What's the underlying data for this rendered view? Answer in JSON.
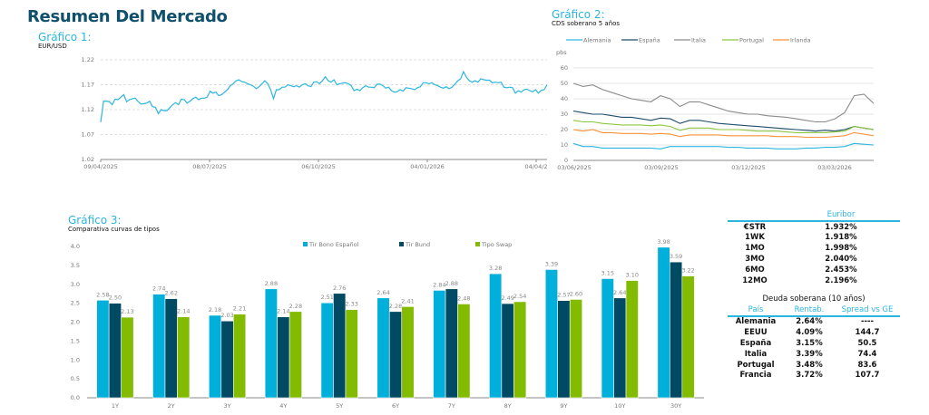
{
  "page": {
    "title": "Resumen Del Mercado"
  },
  "chart1": {
    "label": "Gráfico 1:",
    "subtitle": "EUR/USD"
  },
  "chart2": {
    "label": "Gráfico 2:",
    "subtitle": "CDS soberano 5 años",
    "unit": "pbs"
  },
  "chart3": {
    "label": "Gráfico 3:",
    "subtitle": "Comparativa curvas de tipos"
  },
  "colors": {
    "accent": "#2bb6df",
    "title": "#10506b",
    "tir_bono": "#00b0db",
    "tir_bund": "#004a63",
    "tipo_swap": "#82bb00",
    "alemania": "#2bb6df",
    "espana": "#1f4e6b",
    "italia": "#8a8a8a",
    "portugal": "#8cc63f",
    "irlanda": "#f7923a"
  },
  "chart_data": [
    {
      "type": "line",
      "title": "EUR/USD",
      "x_ticks": [
        "09/04/2025",
        "08/07/2025",
        "06/10/2025",
        "04/01/2026",
        "04/04/2"
      ],
      "y_ticks": [
        "1.02",
        "1.07",
        "1.12",
        "1.17",
        "1.22"
      ],
      "ylim": [
        1.02,
        1.22
      ],
      "grid": true,
      "series": [
        {
          "name": "EUR/USD",
          "values": [
            1.095,
            1.137,
            1.137,
            1.136,
            1.13,
            1.141,
            1.14,
            1.145,
            1.15,
            1.136,
            1.14,
            1.142,
            1.143,
            1.136,
            1.131,
            1.132,
            1.133,
            1.137,
            1.126,
            1.125,
            1.112,
            1.12,
            1.118,
            1.118,
            1.124,
            1.13,
            1.134,
            1.13,
            1.141,
            1.14,
            1.133,
            1.137,
            1.142,
            1.145,
            1.14,
            1.143,
            1.143,
            1.145,
            1.157,
            1.153,
            1.155,
            1.148,
            1.15,
            1.155,
            1.16,
            1.168,
            1.172,
            1.178,
            1.18,
            1.176,
            1.175,
            1.172,
            1.17,
            1.167,
            1.162,
            1.166,
            1.172,
            1.178,
            1.172,
            1.16,
            1.142,
            1.16,
            1.16,
            1.165,
            1.165,
            1.17,
            1.168,
            1.166,
            1.168,
            1.165,
            1.17,
            1.172,
            1.168,
            1.166,
            1.175,
            1.176,
            1.172,
            1.178,
            1.186,
            1.178,
            1.175,
            1.18,
            1.17,
            1.172,
            1.173,
            1.174,
            1.172,
            1.168,
            1.158,
            1.161,
            1.158,
            1.164,
            1.168,
            1.165,
            1.165,
            1.164,
            1.171,
            1.171,
            1.168,
            1.163,
            1.165,
            1.158,
            1.155,
            1.156,
            1.16,
            1.157,
            1.164,
            1.163,
            1.162,
            1.16,
            1.164,
            1.166,
            1.174,
            1.174,
            1.172,
            1.174,
            1.17,
            1.168,
            1.165,
            1.163,
            1.166,
            1.162,
            1.165,
            1.171,
            1.178,
            1.182,
            1.196,
            1.185,
            1.178,
            1.175,
            1.178,
            1.175,
            1.182,
            1.18,
            1.179,
            1.179,
            1.174,
            1.175,
            1.174,
            1.175,
            1.165,
            1.164,
            1.165,
            1.164,
            1.153,
            1.158,
            1.155,
            1.16,
            1.161,
            1.158,
            1.156,
            1.16,
            1.153,
            1.159,
            1.16,
            1.17
          ]
        }
      ]
    },
    {
      "type": "line",
      "title": "CDS soberano 5 años",
      "ylabel": "pbs",
      "x_ticks": [
        "03/06/2025",
        "03/09/2025",
        "03/12/2025",
        "03/03/2026"
      ],
      "y_ticks": [
        "0",
        "10",
        "20",
        "30",
        "40",
        "50",
        "60"
      ],
      "ylim": [
        0,
        60
      ],
      "grid": true,
      "legend": "top",
      "series": [
        {
          "name": "Alemania",
          "values": [
            11,
            9,
            9,
            8,
            8,
            8,
            8,
            8,
            8,
            7.5,
            9,
            9,
            9,
            9,
            9,
            9,
            8.5,
            8.5,
            8,
            8,
            8,
            7.5,
            7.5,
            7.5,
            8,
            8,
            8.5,
            8.5,
            9,
            11,
            10.5,
            10
          ]
        },
        {
          "name": "España",
          "values": [
            32,
            31,
            30,
            30,
            29,
            28,
            28,
            27,
            26,
            27.5,
            27,
            24,
            26,
            26,
            25,
            24,
            23.5,
            23,
            22.5,
            22,
            21.5,
            21,
            20.5,
            20,
            19.5,
            19,
            19.5,
            19,
            20,
            22,
            21,
            20
          ]
        },
        {
          "name": "Italia",
          "values": [
            50,
            48,
            49,
            46,
            44,
            42,
            40,
            39,
            38,
            42,
            40,
            35,
            38,
            38,
            36,
            34,
            32,
            31,
            30,
            30,
            29,
            28.5,
            28,
            27,
            26,
            25,
            25,
            27,
            31,
            42,
            43,
            37
          ]
        },
        {
          "name": "Portugal",
          "values": [
            26,
            25,
            25,
            24,
            23.5,
            23,
            23,
            23,
            22.5,
            23,
            22,
            19.5,
            21,
            21,
            21,
            20,
            20,
            20,
            19.5,
            19,
            19,
            19,
            18.5,
            18,
            18,
            18,
            18,
            18.5,
            19,
            22,
            21,
            20
          ]
        },
        {
          "name": "Irlanda",
          "values": [
            20,
            19,
            20,
            18,
            18,
            17.5,
            17.5,
            17.5,
            17,
            17.5,
            17,
            15.5,
            16.5,
            16.5,
            16.5,
            16.5,
            16,
            16,
            16,
            16,
            16,
            15.5,
            15.5,
            15.5,
            15,
            15,
            15,
            15.5,
            16,
            18,
            17,
            16
          ]
        }
      ]
    },
    {
      "type": "bar",
      "title": "Comparativa curvas de tipos",
      "categories": [
        "1Y",
        "2Y",
        "3Y",
        "4Y",
        "5Y",
        "6Y",
        "7Y",
        "8Y",
        "9Y",
        "10Y",
        "30Y"
      ],
      "y_ticks": [
        "0.0",
        "0.5",
        "1.0",
        "1.5",
        "2.0",
        "2.5",
        "3.0",
        "3.5",
        "4.0"
      ],
      "ylim": [
        0,
        4.0
      ],
      "legend": "top",
      "series": [
        {
          "name": "Tir Bono Español",
          "values": [
            2.58,
            2.74,
            2.18,
            2.88,
            2.51,
            2.64,
            2.84,
            3.28,
            3.39,
            3.15,
            3.98
          ]
        },
        {
          "name": "Tir Bund",
          "values": [
            2.5,
            2.62,
            2.03,
            2.14,
            2.76,
            2.28,
            2.88,
            2.49,
            2.57,
            2.64,
            3.59
          ]
        },
        {
          "name": "Tipo Swap",
          "values": [
            2.13,
            2.14,
            2.21,
            2.28,
            2.33,
            2.41,
            2.48,
            2.54,
            2.6,
            3.1,
            3.22
          ]
        }
      ]
    }
  ],
  "euribor": {
    "header": "Euribor",
    "rows": [
      {
        "label": "€STR",
        "value": "1.932%"
      },
      {
        "label": "1WK",
        "value": "1.918%"
      },
      {
        "label": "1MO",
        "value": "1.998%"
      },
      {
        "label": "3MO",
        "value": "2.040%"
      },
      {
        "label": "6MO",
        "value": "2.453%"
      },
      {
        "label": "12MO",
        "value": "2.196%"
      }
    ]
  },
  "deuda": {
    "title": "Deuda soberana (10 años)",
    "headers": [
      "País",
      "Rentab.",
      "Spread vs GE"
    ],
    "rows": [
      {
        "pais": "Alemania",
        "rentab": "2.64%",
        "spread": "----"
      },
      {
        "pais": "EEUU",
        "rentab": "4.09%",
        "spread": "144.7"
      },
      {
        "pais": "España",
        "rentab": "3.15%",
        "spread": "50.5"
      },
      {
        "pais": "Italia",
        "rentab": "3.39%",
        "spread": "74.4"
      },
      {
        "pais": "Portugal",
        "rentab": "3.48%",
        "spread": "83.6"
      },
      {
        "pais": "Francia",
        "rentab": "3.72%",
        "spread": "107.7"
      }
    ]
  }
}
